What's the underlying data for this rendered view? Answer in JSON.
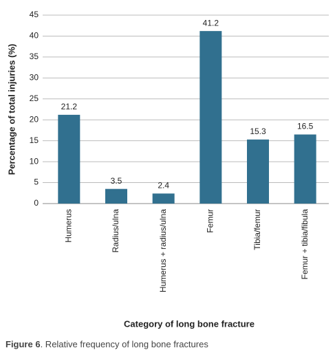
{
  "chart_data": {
    "type": "bar",
    "xlabel": "Category of long bone fracture",
    "ylabel": "Percentage of total injuries (%)",
    "categories": [
      "Humerus",
      "Radius/ulna",
      "Humerus + radius/ulna",
      "Femur",
      "Tibia/femur",
      "Femur + tibia/fibula"
    ],
    "values": [
      21.2,
      3.5,
      2.4,
      41.2,
      15.3,
      16.5
    ],
    "color": "#31708f",
    "ylim": [
      0,
      45
    ],
    "yticks": [
      0,
      5,
      10,
      15,
      20,
      25,
      30,
      35,
      40,
      45
    ],
    "grid": true
  },
  "caption": {
    "label": "Figure 6",
    "text": ". Relative frequency of long bone fractures"
  }
}
